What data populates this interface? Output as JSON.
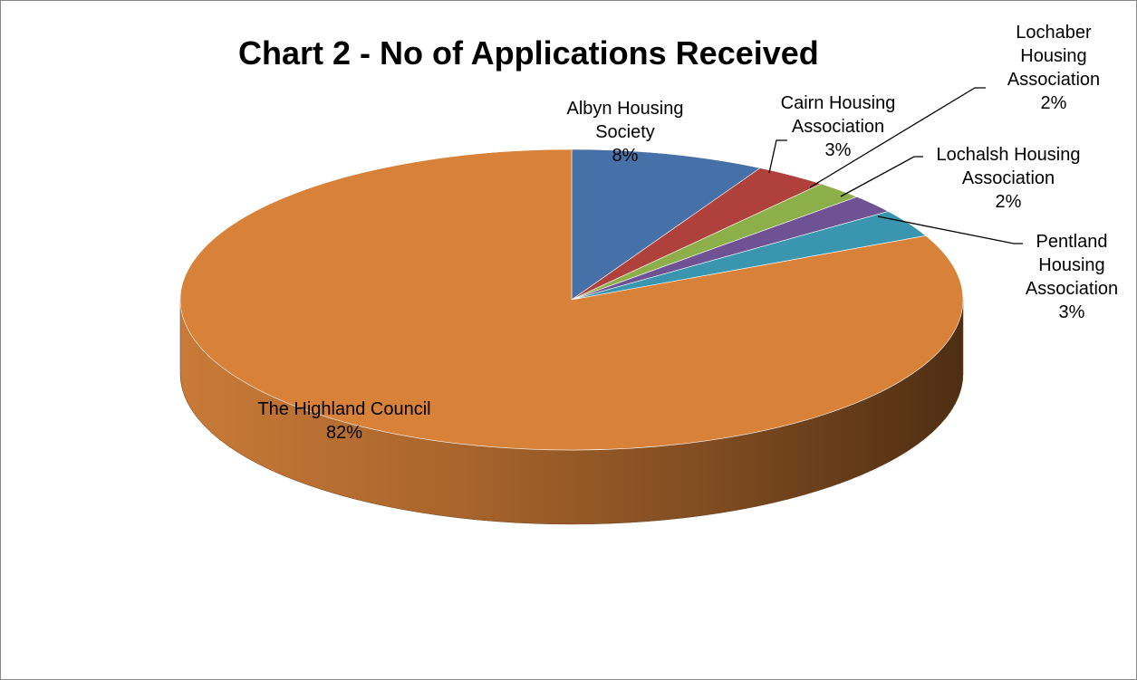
{
  "chart_data": {
    "type": "pie",
    "title": "Chart 2 - No of Applications Received",
    "slices": [
      {
        "label_lines": [
          "Albyn Housing",
          "Society"
        ],
        "percent_label": "8%",
        "value": 8,
        "color": "#4670A8"
      },
      {
        "label_lines": [
          "Cairn Housing",
          "Association"
        ],
        "percent_label": "3%",
        "value": 3,
        "color": "#B0403C"
      },
      {
        "label_lines": [
          "Lochaber",
          "Housing",
          "Association"
        ],
        "percent_label": "2%",
        "value": 2,
        "color": "#8DAF4A"
      },
      {
        "label_lines": [
          "Lochalsh Housing",
          "Association"
        ],
        "percent_label": "2%",
        "value": 2,
        "color": "#6E5293"
      },
      {
        "label_lines": [
          "Pentland",
          "Housing",
          "Association"
        ],
        "percent_label": "3%",
        "value": 3,
        "color": "#3996AE"
      },
      {
        "label_lines": [
          "The Highland Council"
        ],
        "percent_label": "82%",
        "value": 82,
        "color": "#D88139"
      }
    ]
  }
}
